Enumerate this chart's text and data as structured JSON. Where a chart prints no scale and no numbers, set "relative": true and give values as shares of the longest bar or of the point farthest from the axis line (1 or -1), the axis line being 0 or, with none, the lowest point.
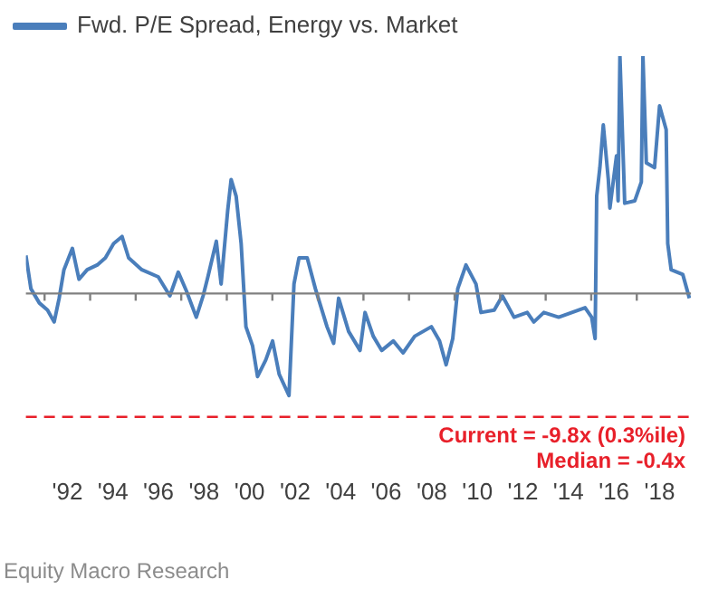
{
  "chart_data": {
    "type": "line",
    "relative": true,
    "legend": "top left",
    "grid": false,
    "marker": "none",
    "line_style": "solid",
    "xlim": [
      1990.18,
      2019.38
    ],
    "xticks": [
      {
        "value": 1992,
        "label": "'92"
      },
      {
        "value": 1994,
        "label": "'94"
      },
      {
        "value": 1996,
        "label": "'96"
      },
      {
        "value": 1998,
        "label": "'98"
      },
      {
        "value": 2000,
        "label": "'00"
      },
      {
        "value": 2002,
        "label": "'02"
      },
      {
        "value": 2004,
        "label": "'04"
      },
      {
        "value": 2006,
        "label": "'06"
      },
      {
        "value": 2008,
        "label": "'08"
      },
      {
        "value": 2010,
        "label": "'10"
      },
      {
        "value": 2012,
        "label": "'12"
      },
      {
        "value": 2014,
        "label": "'14"
      },
      {
        "value": 2016,
        "label": "'16"
      },
      {
        "value": 2018,
        "label": "'18"
      }
    ],
    "x": [
      1990.18,
      1990.4,
      1990.77,
      1991.13,
      1991.42,
      1991.64,
      1991.85,
      1992.22,
      1992.51,
      1992.87,
      1993.31,
      1993.67,
      1994.03,
      1994.4,
      1994.69,
      1995.27,
      1995.99,
      1996.5,
      1996.87,
      1997.23,
      1997.66,
      1997.96,
      1998.17,
      1998.54,
      1998.75,
      1999.04,
      1999.19,
      1999.41,
      1999.63,
      1999.84,
      2000.13,
      2000.35,
      2000.71,
      2001.01,
      2001.3,
      2001.73,
      2001.95,
      2002.17,
      2002.53,
      2002.89,
      2003.4,
      2003.69,
      2003.91,
      2004.35,
      2004.85,
      2005.07,
      2005.43,
      2005.8,
      2006.31,
      2006.74,
      2007.25,
      2007.98,
      2008.34,
      2008.63,
      2008.92,
      2009.14,
      2009.5,
      2009.94,
      2010.16,
      2010.74,
      2011.1,
      2011.61,
      2012.19,
      2012.48,
      2012.92,
      2013.57,
      2014.15,
      2014.73,
      2015.02,
      2015.17,
      2015.24,
      2015.38,
      2015.53,
      2015.75,
      2015.82,
      2016.11,
      2016.18,
      2016.26,
      2016.47,
      2016.91,
      2017.2,
      2017.27,
      2017.42,
      2017.78,
      2018.0,
      2018.29,
      2018.36,
      2018.51,
      2019.02,
      2019.31
    ],
    "series": [
      {
        "name": "Fwd. P/E Spread, Energy vs. Market",
        "color": "#4a7ebb",
        "values": [
          0.16,
          0.02,
          -0.04,
          -0.07,
          -0.12,
          -0.02,
          0.1,
          0.19,
          0.06,
          0.1,
          0.12,
          0.15,
          0.21,
          0.24,
          0.15,
          0.1,
          0.07,
          -0.01,
          0.09,
          0.01,
          -0.1,
          -0.01,
          0.07,
          0.22,
          0.04,
          0.35,
          0.48,
          0.41,
          0.21,
          -0.14,
          -0.22,
          -0.35,
          -0.28,
          -0.2,
          -0.34,
          -0.43,
          0.04,
          0.15,
          0.15,
          0.02,
          -0.14,
          -0.21,
          -0.02,
          -0.16,
          -0.24,
          -0.08,
          -0.18,
          -0.24,
          -0.2,
          -0.25,
          -0.18,
          -0.14,
          -0.2,
          -0.3,
          -0.19,
          0.02,
          0.12,
          0.04,
          -0.08,
          -0.07,
          -0.01,
          -0.1,
          -0.08,
          -0.12,
          -0.08,
          -0.1,
          -0.08,
          -0.06,
          -0.1,
          -0.19,
          0.41,
          0.53,
          0.71,
          0.48,
          0.36,
          0.58,
          0.39,
          1.0,
          0.38,
          0.39,
          0.47,
          1.0,
          0.55,
          0.53,
          0.79,
          0.69,
          0.21,
          0.1,
          0.08,
          -0.02
        ]
      }
    ],
    "ref_lines": [
      {
        "axis": "y",
        "value": -0.52,
        "color": "#e8202a",
        "line_style": "dashed"
      }
    ],
    "annotations": [
      "Current = -9.8x (0.3%ile)",
      "Median = -0.4x",
      "Equity Macro Research"
    ]
  }
}
